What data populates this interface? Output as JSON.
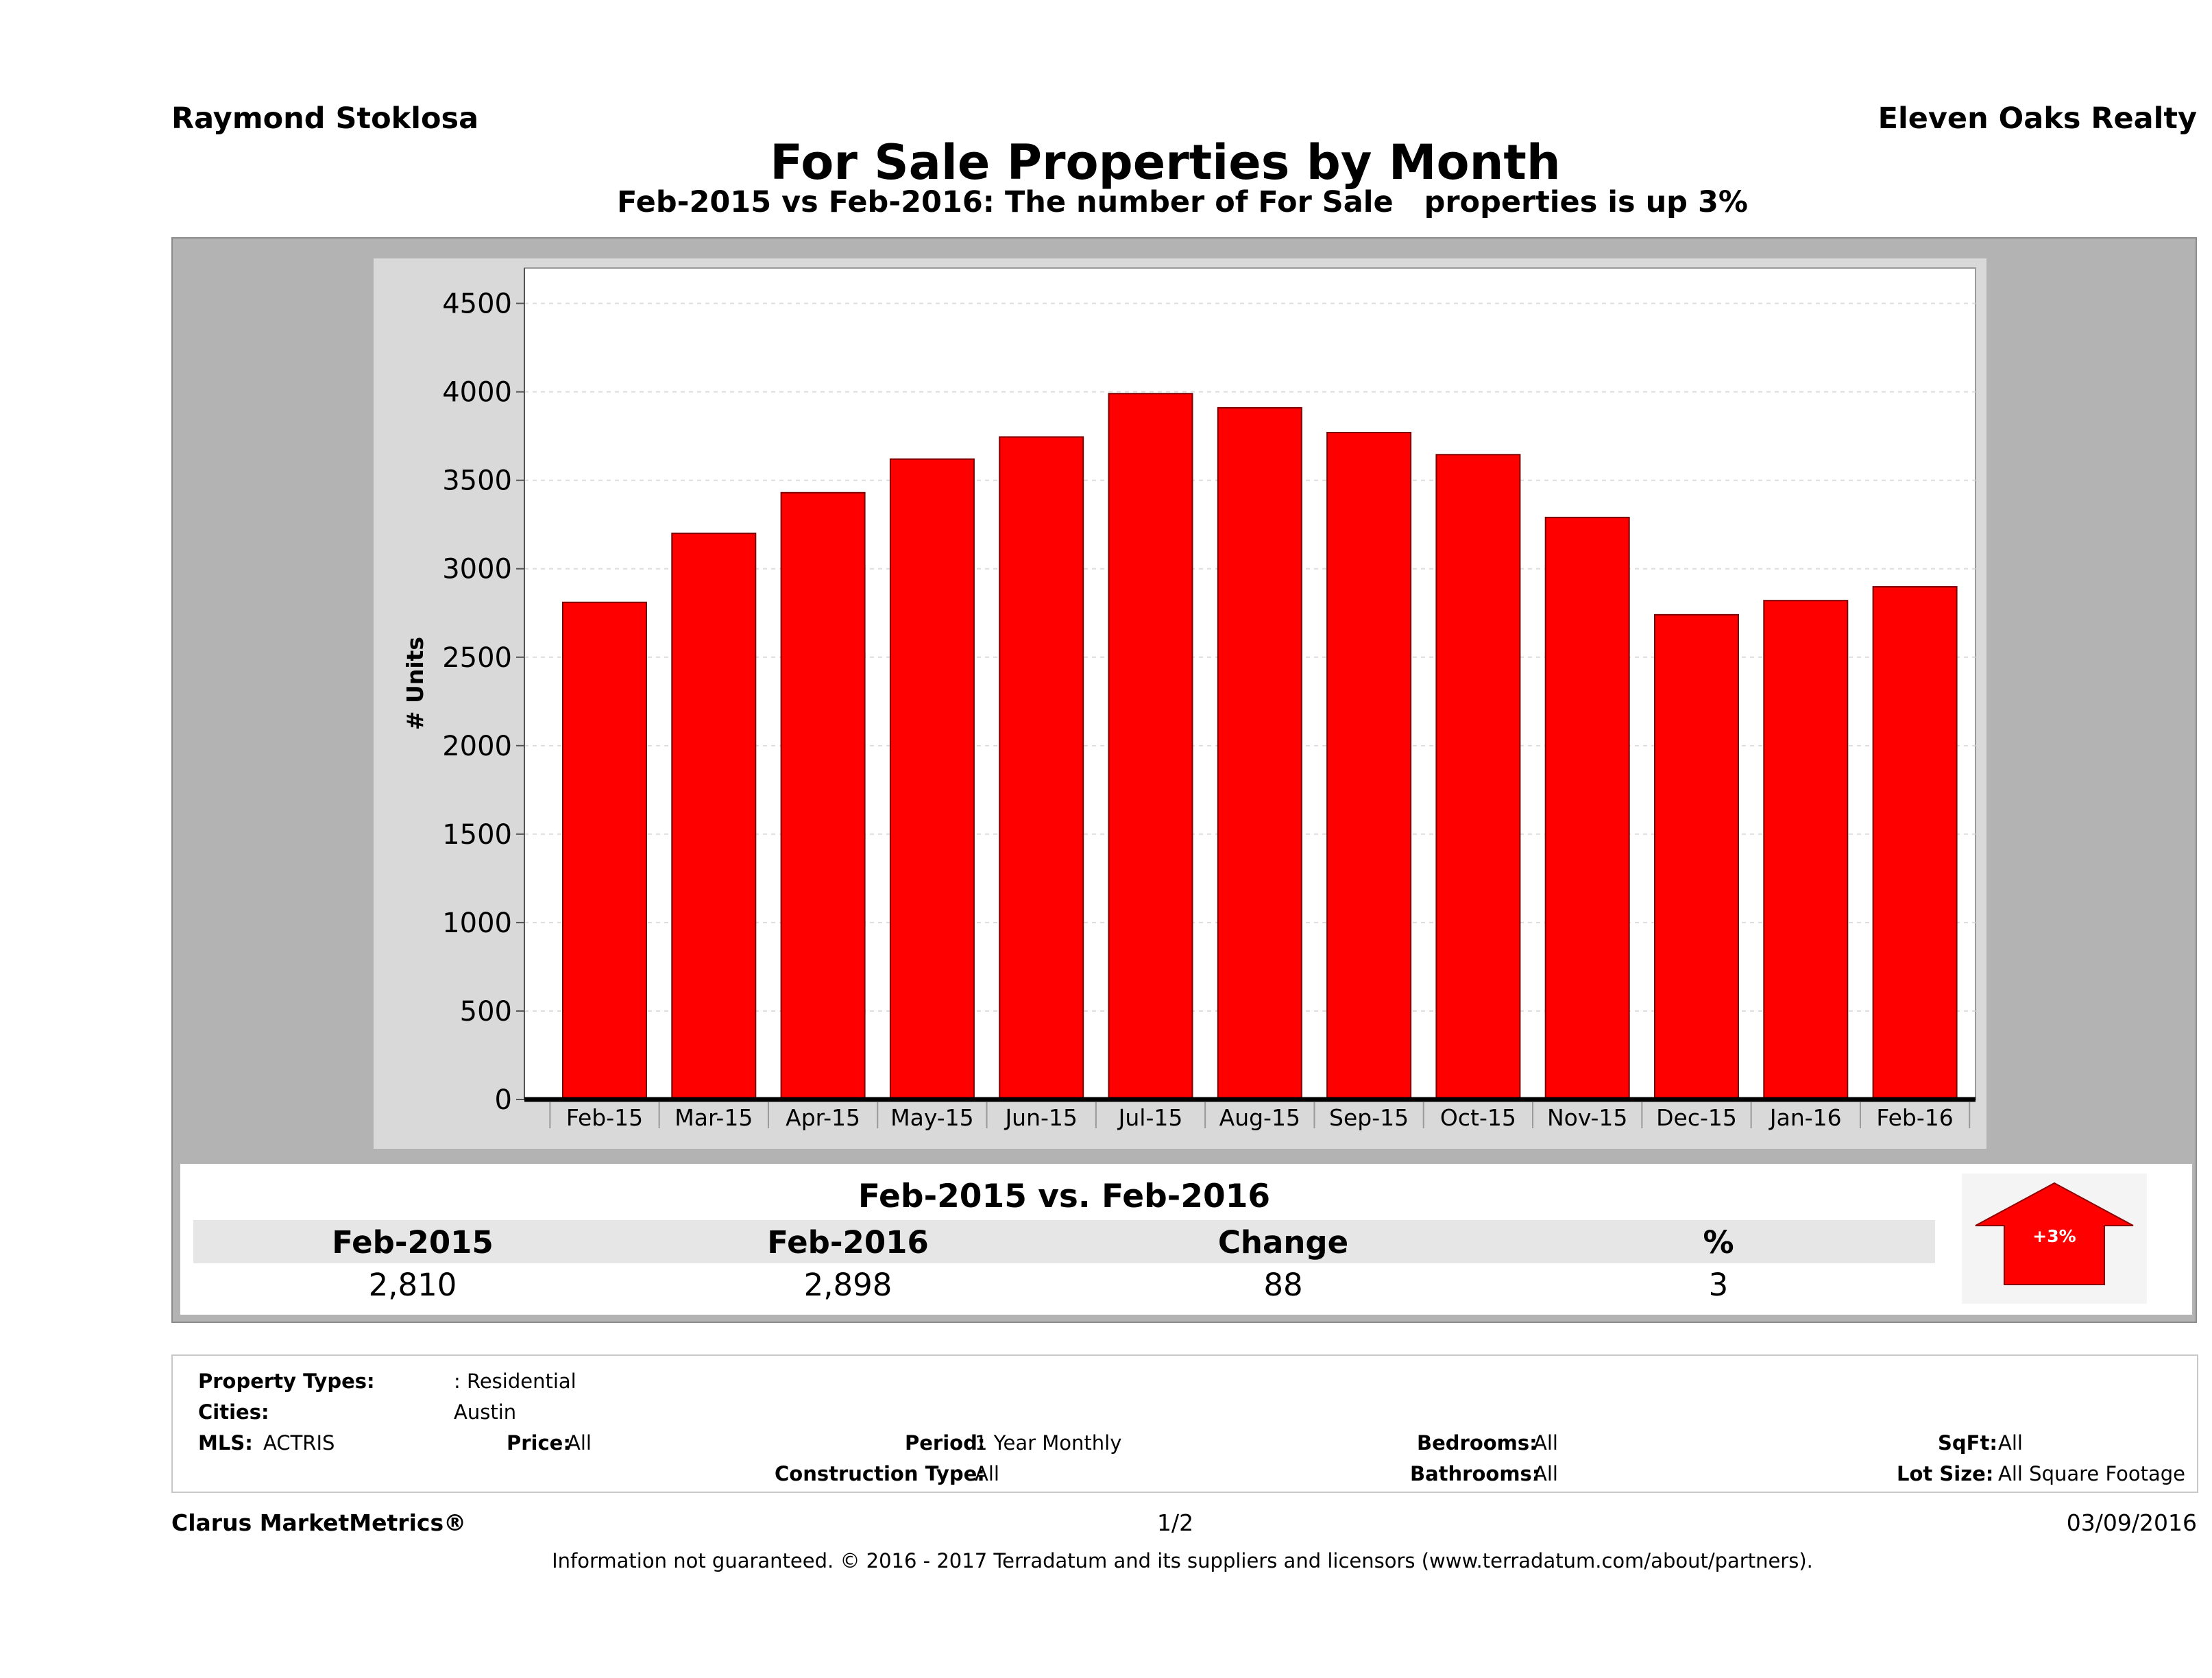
{
  "header": {
    "agent": "Raymond Stoklosa",
    "company": "Eleven Oaks Realty",
    "title": "For Sale Properties by Month",
    "subtitle": "Feb-2015 vs Feb-2016: The number of For Sale   properties is up 3%"
  },
  "chart_data": {
    "type": "bar",
    "categories": [
      "Feb-15",
      "Mar-15",
      "Apr-15",
      "May-15",
      "Jun-15",
      "Jul-15",
      "Aug-15",
      "Sep-15",
      "Oct-15",
      "Nov-15",
      "Dec-15",
      "Jan-16",
      "Feb-16"
    ],
    "values": [
      2810,
      3200,
      3430,
      3620,
      3745,
      3990,
      3910,
      3770,
      3645,
      3290,
      2740,
      2820,
      2898
    ],
    "ylabel": "# Units",
    "ylim": [
      0,
      4700
    ],
    "yticks": [
      0,
      500,
      1000,
      1500,
      2000,
      2500,
      3000,
      3500,
      4000,
      4500
    ],
    "grid": true,
    "bar_color": "#ff0000"
  },
  "summary": {
    "title": "Feb-2015 vs. Feb-2016",
    "headers": [
      "Feb-2015",
      "Feb-2016",
      "Change",
      "%"
    ],
    "values": [
      "2,810",
      "2,898",
      "88",
      "3"
    ],
    "badge": "+3%",
    "badge_color": "#ff0000"
  },
  "filters": {
    "property_types_label": "Property Types:",
    "property_types_value": ": Residential",
    "cities_label": "Cities:",
    "cities_value": "Austin",
    "mls_label": "MLS:",
    "mls_value": "ACTRIS",
    "price_label": "Price:",
    "price_value": "All",
    "period_label": "Period:",
    "period_value": "1 Year Monthly",
    "construction_label": "Construction Type:",
    "construction_value": "All",
    "bedrooms_label": "Bedrooms:",
    "bedrooms_value": "All",
    "bathrooms_label": "Bathrooms:",
    "bathrooms_value": "All",
    "sqft_label": "SqFt:",
    "sqft_value": "All",
    "lotsize_label": "Lot Size:",
    "lotsize_value": "All Square Footage"
  },
  "footer": {
    "brand": "Clarus MarketMetrics®",
    "page": "1/2",
    "date": "03/09/2016",
    "disclaimer": "Information not guaranteed. © 2016 - 2017 Terradatum and its suppliers and licensors (www.terradatum.com/about/partners)."
  }
}
